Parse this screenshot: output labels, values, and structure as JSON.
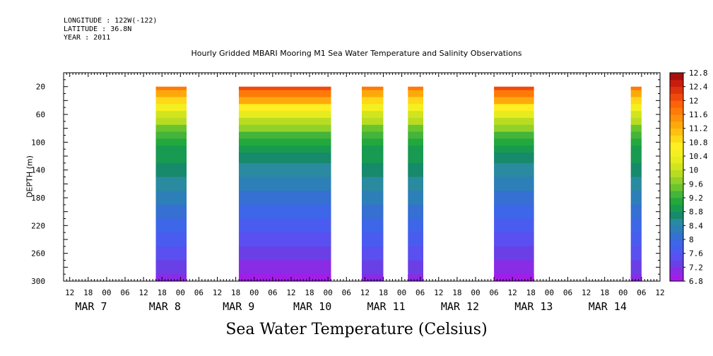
{
  "header": {
    "longitude": "LONGITUDE : 122W(-122)",
    "latitude": "LATITUDE : 36.8N",
    "year": "YEAR : 2011"
  },
  "chart_data": {
    "type": "heatmap",
    "title": "Hourly Gridded MBARI Mooring M1 Sea Water Temperature and Salinity Observations",
    "xlabel": "Sea Water Temperature (Celsius)",
    "ylabel": "DEPTH (m)",
    "x_unit": "hours since MAR 7 00:00 (2011)",
    "xlim": [
      -14,
      180
    ],
    "ylim": [
      300,
      0
    ],
    "x_minor_tick_labels": [
      "12",
      "18",
      "00",
      "06",
      "12",
      "18",
      "00",
      "06",
      "12",
      "18",
      "00",
      "06",
      "12",
      "18",
      "00",
      "06",
      "12",
      "18",
      "00",
      "06",
      "12",
      "18",
      "00",
      "06",
      "12",
      "18",
      "00",
      "06",
      "12",
      "18",
      "00",
      "06",
      "12"
    ],
    "x_day_labels": [
      "MAR 7",
      "MAR 8",
      "MAR 9",
      "MAR 10",
      "MAR 11",
      "MAR 12",
      "MAR 13",
      "MAR 14"
    ],
    "y_ticks": [
      20,
      60,
      100,
      140,
      180,
      220,
      260,
      300
    ],
    "colorbar": {
      "levels": [
        6.8,
        7.0,
        7.2,
        7.4,
        7.6,
        7.8,
        8.0,
        8.2,
        8.4,
        8.6,
        8.8,
        9.0,
        9.2,
        9.4,
        9.6,
        9.8,
        10.0,
        10.2,
        10.4,
        10.6,
        10.8,
        11.0,
        11.2,
        11.4,
        11.6,
        11.8,
        12.0,
        12.2,
        12.4,
        12.6,
        12.8
      ],
      "labels": [
        "12.8",
        "12.4",
        "12",
        "11.6",
        "11.2",
        "10.8",
        "10.4",
        "10",
        "9.6",
        "9.2",
        "8.8",
        "8.4",
        "8",
        "7.6",
        "7.2",
        "6.8"
      ],
      "colors": [
        "#a21ee8",
        "#8a2be6",
        "#6a3fe6",
        "#5a4ff0",
        "#4a5cf0",
        "#3d66e8",
        "#3570d2",
        "#2d7fb8",
        "#2a8aa0",
        "#168a6a",
        "#189a50",
        "#22a83c",
        "#44b43a",
        "#6ac42e",
        "#92d02a",
        "#b8dc22",
        "#d2e41e",
        "#e6ec1e",
        "#f4f020",
        "#ffee22",
        "#ffd818",
        "#ffc010",
        "#ffa80c",
        "#ff920a",
        "#ff7a08",
        "#ff6208",
        "#f04a0a",
        "#de320c",
        "#c81c0e",
        "#a8100e"
      ]
    },
    "profile": {
      "depths": [
        20,
        30,
        40,
        50,
        60,
        70,
        80,
        90,
        100,
        110,
        120,
        140,
        160,
        180,
        200,
        220,
        240,
        260,
        280,
        300
      ],
      "temps_day1": [
        11.8,
        11.4,
        11.0,
        10.6,
        10.2,
        9.9,
        9.6,
        9.4,
        9.2,
        9.0,
        8.9,
        8.7,
        8.5,
        8.3,
        8.1,
        7.9,
        7.7,
        7.5,
        7.3,
        7.1
      ],
      "temps_day2": [
        12.1,
        11.7,
        11.3,
        10.8,
        10.4,
        10.0,
        9.7,
        9.4,
        9.2,
        9.0,
        8.8,
        8.6,
        8.3,
        8.1,
        7.9,
        7.7,
        7.5,
        7.3,
        7.0,
        6.8
      ]
    },
    "observation_segments": [
      {
        "start": 16,
        "end": 26,
        "variant": 1
      },
      {
        "start": 43,
        "end": 73,
        "variant": 2
      },
      {
        "start": 83,
        "end": 90,
        "variant": 1
      },
      {
        "start": 98,
        "end": 103,
        "variant": 1
      },
      {
        "start": 126,
        "end": 139,
        "variant": 2
      },
      {
        "start": 170.5,
        "end": 174,
        "variant": 1
      },
      {
        "start": 200,
        "end": 218,
        "variant": 2
      },
      {
        "start": 244,
        "end": 252.5,
        "variant": 1
      },
      {
        "start": 261,
        "end": 264.5,
        "variant": 1
      }
    ],
    "grid": false,
    "legend_position": "right"
  }
}
